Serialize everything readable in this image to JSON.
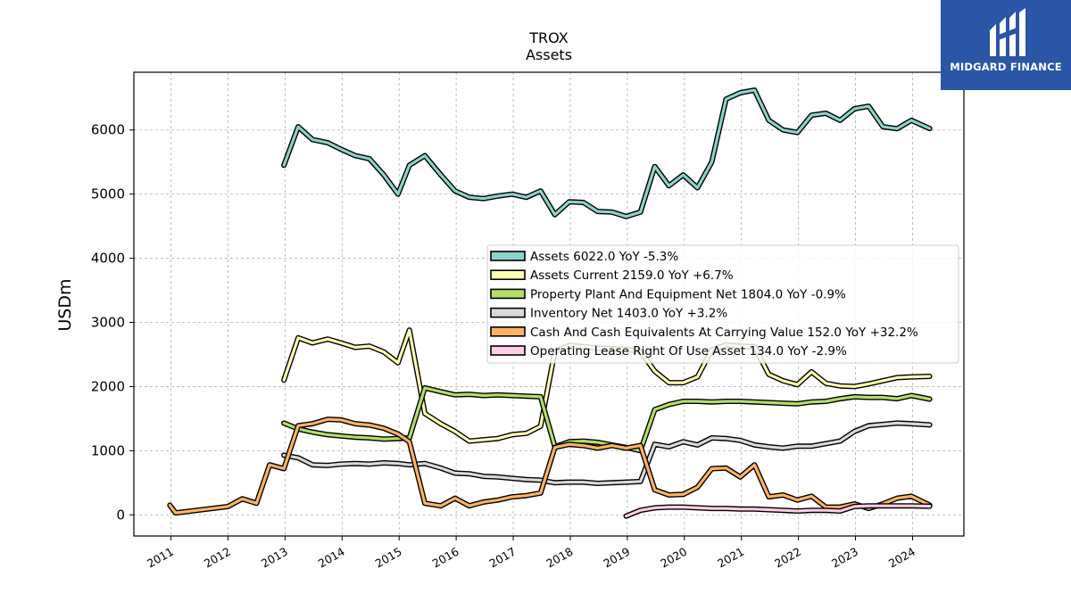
{
  "chart_data": {
    "type": "line",
    "title": "TROX",
    "subtitle": "Assets",
    "ylabel": "USDm",
    "xlabel": "",
    "xlim": [
      2010.35,
      2024.9
    ],
    "ylim": [
      -330,
      6900
    ],
    "yticks": [
      0,
      1000,
      2000,
      3000,
      4000,
      5000,
      6000
    ],
    "ytick_labels": [
      "0",
      "1000",
      "2000",
      "3000",
      "4000",
      "5000",
      "6000"
    ],
    "xticks": [
      2011,
      2012,
      2013,
      2014,
      2015,
      2016,
      2017,
      2018,
      2019,
      2020,
      2021,
      2022,
      2023,
      2024
    ],
    "xtick_labels": [
      "2011",
      "2012",
      "2013",
      "2014",
      "2015",
      "2016",
      "2017",
      "2018",
      "2019",
      "2020",
      "2021",
      "2022",
      "2023",
      "2024"
    ],
    "grid": true,
    "legend_position": "center-right",
    "series": [
      {
        "name": "Assets",
        "legend": "Assets  6022.0 YoY -5.3%",
        "color": "#8dd3c7",
        "x": [
          2012.98,
          2013.23,
          2013.48,
          2013.75,
          2013.98,
          2014.23,
          2014.48,
          2014.73,
          2014.98,
          2015.18,
          2015.45,
          2015.73,
          2015.98,
          2016.23,
          2016.48,
          2016.73,
          2016.98,
          2017.23,
          2017.48,
          2017.73,
          2017.98,
          2018.23,
          2018.48,
          2018.73,
          2018.98,
          2019.23,
          2019.48,
          2019.73,
          2019.98,
          2020.23,
          2020.48,
          2020.73,
          2020.98,
          2021.23,
          2021.48,
          2021.73,
          2021.98,
          2022.23,
          2022.48,
          2022.73,
          2022.98,
          2023.23,
          2023.48,
          2023.73,
          2023.98,
          2024.3
        ],
        "values": [
          5450,
          6050,
          5850,
          5800,
          5700,
          5600,
          5550,
          5300,
          5000,
          5450,
          5600,
          5300,
          5050,
          4950,
          4930,
          4970,
          5000,
          4950,
          5050,
          4680,
          4880,
          4870,
          4730,
          4720,
          4650,
          4720,
          5430,
          5130,
          5300,
          5100,
          5500,
          6480,
          6580,
          6620,
          6150,
          6000,
          5960,
          6230,
          6260,
          6150,
          6330,
          6370,
          6050,
          6020,
          6150,
          6022
        ]
      },
      {
        "name": "Assets Current",
        "legend": "Assets Current  2159.0 YoY +6.7%",
        "color": "#ffffb3",
        "x": [
          2012.98,
          2013.23,
          2013.48,
          2013.75,
          2013.98,
          2014.23,
          2014.48,
          2014.73,
          2014.98,
          2015.18,
          2015.45,
          2015.73,
          2015.98,
          2016.23,
          2016.48,
          2016.73,
          2016.98,
          2017.23,
          2017.48,
          2017.73,
          2017.98,
          2018.23,
          2018.48,
          2018.73,
          2018.98,
          2019.23,
          2019.48,
          2019.73,
          2019.98,
          2020.23,
          2020.48,
          2020.73,
          2020.98,
          2021.23,
          2021.48,
          2021.73,
          2021.98,
          2022.23,
          2022.48,
          2022.73,
          2022.98,
          2023.23,
          2023.48,
          2023.73,
          2023.98,
          2024.3
        ],
        "values": [
          2100,
          2760,
          2680,
          2740,
          2680,
          2610,
          2630,
          2540,
          2370,
          2880,
          1580,
          1420,
          1300,
          1150,
          1170,
          1190,
          1250,
          1270,
          1380,
          2550,
          2640,
          2620,
          2600,
          2590,
          2580,
          2550,
          2240,
          2060,
          2060,
          2150,
          2570,
          2650,
          2630,
          2620,
          2190,
          2090,
          2030,
          2230,
          2050,
          2010,
          2000,
          2040,
          2090,
          2140,
          2150,
          2159
        ]
      },
      {
        "name": "Property Plant And Equipment Net",
        "legend": "Property Plant And Equipment Net  1804.0 YoY -0.9%",
        "color": "#b3de69",
        "x": [
          2012.98,
          2013.23,
          2013.48,
          2013.75,
          2013.98,
          2014.23,
          2014.48,
          2014.73,
          2014.98,
          2015.18,
          2015.45,
          2015.73,
          2015.98,
          2016.23,
          2016.48,
          2016.73,
          2016.98,
          2017.23,
          2017.48,
          2017.73,
          2017.98,
          2018.23,
          2018.48,
          2018.73,
          2018.98,
          2019.23,
          2019.48,
          2019.73,
          2019.98,
          2020.23,
          2020.48,
          2020.73,
          2020.98,
          2021.23,
          2021.48,
          2021.73,
          2021.98,
          2022.23,
          2022.48,
          2022.73,
          2022.98,
          2023.23,
          2023.48,
          2023.73,
          2023.98,
          2024.3
        ],
        "values": [
          1430,
          1340,
          1290,
          1250,
          1230,
          1210,
          1200,
          1180,
          1190,
          1200,
          1980,
          1920,
          1870,
          1880,
          1860,
          1870,
          1860,
          1850,
          1840,
          1060,
          1140,
          1150,
          1130,
          1090,
          1050,
          1000,
          1640,
          1720,
          1770,
          1770,
          1760,
          1770,
          1770,
          1760,
          1750,
          1740,
          1730,
          1760,
          1770,
          1810,
          1840,
          1830,
          1830,
          1810,
          1860,
          1804
        ]
      },
      {
        "name": "Inventory Net",
        "legend": "Inventory Net  1403.0 YoY +3.2%",
        "color": "#d9d9d9",
        "x": [
          2012.98,
          2013.23,
          2013.48,
          2013.75,
          2013.98,
          2014.23,
          2014.48,
          2014.73,
          2014.98,
          2015.18,
          2015.45,
          2015.73,
          2015.98,
          2016.23,
          2016.48,
          2016.73,
          2016.98,
          2017.23,
          2017.48,
          2017.73,
          2017.98,
          2018.23,
          2018.48,
          2018.73,
          2018.98,
          2019.23,
          2019.48,
          2019.73,
          2019.98,
          2020.23,
          2020.48,
          2020.73,
          2020.98,
          2021.23,
          2021.48,
          2021.73,
          2021.98,
          2022.23,
          2022.48,
          2022.73,
          2022.98,
          2023.23,
          2023.48,
          2023.73,
          2023.98,
          2024.3
        ],
        "values": [
          930,
          890,
          780,
          770,
          790,
          800,
          790,
          810,
          800,
          780,
          800,
          730,
          650,
          640,
          600,
          590,
          570,
          550,
          540,
          500,
          510,
          510,
          490,
          500,
          510,
          520,
          1100,
          1060,
          1140,
          1090,
          1200,
          1190,
          1160,
          1090,
          1060,
          1040,
          1070,
          1070,
          1110,
          1150,
          1300,
          1390,
          1410,
          1430,
          1420,
          1403
        ]
      },
      {
        "name": "Cash And Cash Equivalents At Carrying Value",
        "legend": "Cash And Cash Equivalents At Carrying Value  152.0 YoY +32.2%",
        "color": "#fdb462",
        "x": [
          2010.98,
          2011.08,
          2012.0,
          2012.25,
          2012.5,
          2012.73,
          2012.98,
          2013.23,
          2013.48,
          2013.75,
          2013.98,
          2014.23,
          2014.48,
          2014.73,
          2014.98,
          2015.18,
          2015.45,
          2015.73,
          2015.98,
          2016.23,
          2016.48,
          2016.73,
          2016.98,
          2017.23,
          2017.48,
          2017.73,
          2017.98,
          2018.23,
          2018.48,
          2018.73,
          2018.98,
          2019.23,
          2019.48,
          2019.73,
          2019.98,
          2020.23,
          2020.48,
          2020.73,
          2020.98,
          2021.23,
          2021.48,
          2021.73,
          2021.98,
          2022.23,
          2022.48,
          2022.73,
          2022.98,
          2023.23,
          2023.48,
          2023.73,
          2023.98,
          2024.3
        ],
        "values": [
          150,
          30,
          130,
          250,
          180,
          780,
          720,
          1390,
          1420,
          1490,
          1480,
          1420,
          1400,
          1350,
          1260,
          1140,
          180,
          140,
          260,
          140,
          200,
          230,
          280,
          300,
          340,
          1050,
          1100,
          1080,
          1040,
          1080,
          1040,
          1080,
          390,
          310,
          320,
          430,
          720,
          730,
          590,
          780,
          280,
          310,
          230,
          290,
          120,
          120,
          170,
          100,
          170,
          260,
          290,
          152
        ]
      },
      {
        "name": "Operating Lease Right Of Use Asset",
        "legend": "Operating Lease Right Of Use Asset  134.0 YoY -2.9%",
        "color": "#fccde5",
        "x": [
          2018.98,
          2019.23,
          2019.48,
          2019.73,
          2019.98,
          2020.23,
          2020.48,
          2020.73,
          2020.98,
          2021.23,
          2021.48,
          2021.73,
          2021.98,
          2022.23,
          2022.48,
          2022.73,
          2022.98,
          2023.23,
          2023.48,
          2023.73,
          2023.98,
          2024.3
        ],
        "values": [
          -20,
          70,
          110,
          120,
          120,
          110,
          100,
          100,
          90,
          90,
          80,
          70,
          60,
          70,
          70,
          60,
          130,
          140,
          140,
          140,
          140,
          134
        ]
      }
    ]
  },
  "logo": {
    "text": "MIDGARD FINANCE",
    "background": "#2b55a6"
  }
}
